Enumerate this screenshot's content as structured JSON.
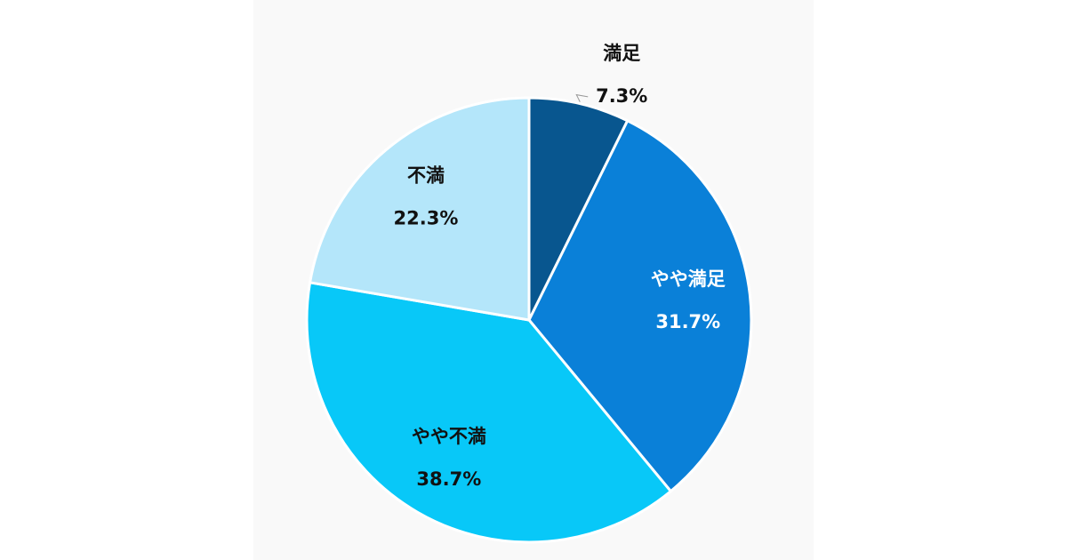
{
  "chart_data": {
    "type": "pie",
    "categories": [
      "満足",
      "やや満足",
      "やや不満",
      "不満"
    ],
    "values": [
      7.3,
      31.7,
      38.7,
      22.3
    ],
    "value_labels": [
      "7.3%",
      "31.7%",
      "38.7%",
      "22.3%"
    ],
    "colors": [
      "#08568f",
      "#0a80d8",
      "#08c8f8",
      "#b4e6fa"
    ]
  }
}
